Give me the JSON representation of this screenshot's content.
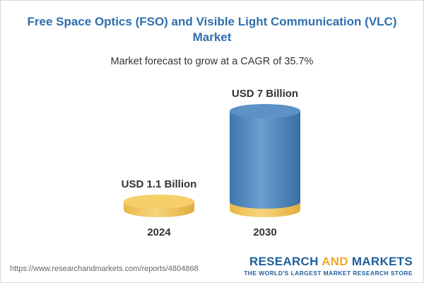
{
  "header": {
    "title": "Free Space Optics (FSO) and Visible Light Communication (VLC) Market",
    "subtitle": "Market forecast to grow at a CAGR of 35.7%"
  },
  "chart_data": {
    "type": "bar",
    "title": "Free Space Optics (FSO) and Visible Light Communication (VLC) Market",
    "subtitle": "Market forecast to grow at a CAGR of 35.7%",
    "categories": [
      "2024",
      "2030"
    ],
    "values": [
      1.1,
      7
    ],
    "unit": "USD Billion",
    "data_labels": [
      "USD 1.1 Billion",
      "USD 7 Billion"
    ],
    "cagr": "35.7%",
    "colors": {
      "base_cylinder": "#f2c55c",
      "growth_cylinder": "#4f86bd",
      "label": "#333333"
    }
  },
  "footer": {
    "url": "https://www.researchandmarkets.com/reports/4804868",
    "brand_part1": "RESEARCH ",
    "brand_and": "AND",
    "brand_part2": " MARKETS",
    "tagline": "THE WORLD'S LARGEST MARKET RESEARCH STORE"
  }
}
